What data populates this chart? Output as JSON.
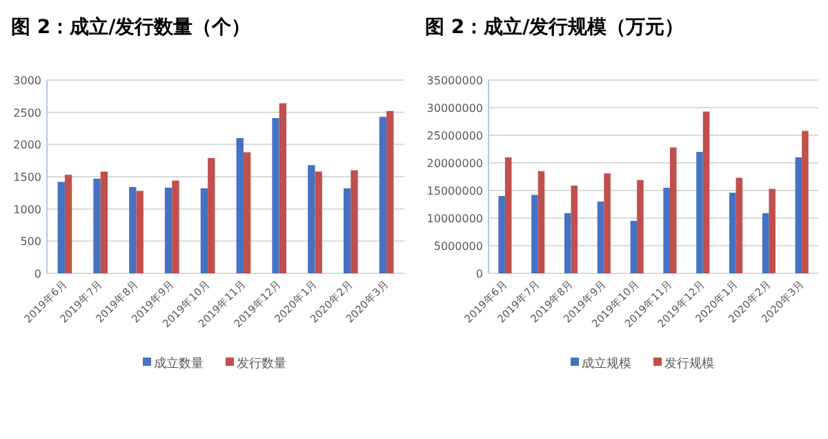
{
  "chart_data": [
    {
      "type": "bar",
      "title": "图 2：成立/发行数量（个）",
      "categories": [
        "2019年6月",
        "2019年7月",
        "2019年8月",
        "2019年9月",
        "2019年10月",
        "2019年11月",
        "2019年12月",
        "2020年1月",
        "2020年2月",
        "2020年3月"
      ],
      "series": [
        {
          "name": "成立数量",
          "color": "#4472c4",
          "values": [
            1420,
            1470,
            1340,
            1330,
            1320,
            2100,
            2410,
            1680,
            1320,
            2430
          ]
        },
        {
          "name": "发行数量",
          "color": "#c0504d",
          "values": [
            1530,
            1580,
            1280,
            1440,
            1790,
            1880,
            2640,
            1580,
            1600,
            2520
          ]
        }
      ],
      "ylim": [
        0,
        3000
      ],
      "yticks": [
        0,
        500,
        1000,
        1500,
        2000,
        2500,
        3000
      ],
      "grid": "y",
      "legend": "bottom"
    },
    {
      "type": "bar",
      "title": "图 2：成立/发行规模（万元）",
      "categories": [
        "2019年6月",
        "2019年7月",
        "2019年8月",
        "2019年9月",
        "2019年10月",
        "2019年11月",
        "2019年12月",
        "2020年1月",
        "2020年2月",
        "2020年3月"
      ],
      "series": [
        {
          "name": "成立规模",
          "color": "#4472c4",
          "values": [
            14000000,
            14200000,
            10900000,
            13000000,
            9500000,
            15500000,
            22000000,
            14600000,
            10900000,
            21000000
          ]
        },
        {
          "name": "发行规模",
          "color": "#c0504d",
          "values": [
            21000000,
            18500000,
            15900000,
            18100000,
            16900000,
            22800000,
            29300000,
            17300000,
            15300000,
            25800000
          ]
        }
      ],
      "ylim": [
        0,
        35000000
      ],
      "yticks": [
        0,
        5000000,
        10000000,
        15000000,
        20000000,
        25000000,
        30000000,
        35000000
      ],
      "grid": "y",
      "legend": "bottom"
    }
  ]
}
